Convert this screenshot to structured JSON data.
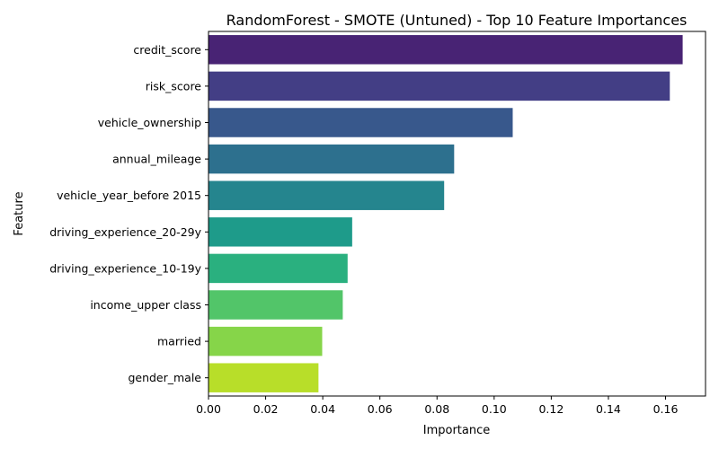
{
  "chart_data": {
    "type": "bar",
    "orientation": "horizontal",
    "title": "RandomForest - SMOTE (Untuned) - Top 10 Feature Importances",
    "xlabel": "Importance",
    "ylabel": "Feature",
    "xlim": [
      0,
      0.174
    ],
    "xticks": [
      0.0,
      0.02,
      0.04,
      0.06,
      0.08,
      0.1,
      0.12,
      0.14,
      0.16
    ],
    "xtick_labels": [
      "0.00",
      "0.02",
      "0.04",
      "0.06",
      "0.08",
      "0.10",
      "0.12",
      "0.14",
      "0.16"
    ],
    "grid": false,
    "categories": [
      "credit_score",
      "risk_score",
      "vehicle_ownership",
      "annual_mileage",
      "vehicle_year_before 2015",
      "driving_experience_20-29y",
      "driving_experience_10-19y",
      "income_upper class",
      "married",
      "gender_male"
    ],
    "values": [
      0.166,
      0.1615,
      0.1065,
      0.086,
      0.0825,
      0.0503,
      0.0487,
      0.047,
      0.0398,
      0.0385
    ],
    "colors": [
      "#482374",
      "#433e85",
      "#38588c",
      "#2d708e",
      "#25858e",
      "#1e9b8a",
      "#2ab07f",
      "#52c569",
      "#86d549",
      "#b8de29"
    ]
  }
}
